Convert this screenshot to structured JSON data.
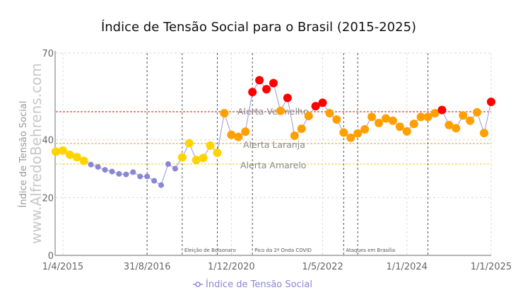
{
  "chart_data": {
    "type": "line",
    "title": "Índice de Tensão Social para o Brasil (2015-2025)",
    "ylabel": "Índice de Tensão Social",
    "watermark": "www.AlfredoBehrens.com",
    "ylim": [
      0,
      70
    ],
    "yticks": [
      0,
      20,
      40,
      70
    ],
    "grid": true,
    "legend": {
      "position": "bottom",
      "entries": [
        "Índice de Tensão Social"
      ]
    },
    "xtick_labels": [
      {
        "index": 1,
        "label": "1/4/2015"
      },
      {
        "index": 13,
        "label": "31/8/2016"
      },
      {
        "index": 25,
        "label": "1/12/2020"
      },
      {
        "index": 38,
        "label": "1/5/2022"
      },
      {
        "index": 50,
        "label": "1/1/2024"
      },
      {
        "index": 62,
        "label": "1/1/2025"
      }
    ],
    "series": [
      {
        "name": "Índice de Tensão Social",
        "color": "#8a86d6",
        "values": [
          35.9,
          36.3,
          34.8,
          34.0,
          32.7,
          31.4,
          30.6,
          29.6,
          29.0,
          28.2,
          28.0,
          28.8,
          27.3,
          27.3,
          25.8,
          24.3,
          31.6,
          30.0,
          33.9,
          38.8,
          33.0,
          33.7,
          38.0,
          35.5,
          49.2,
          41.7,
          41.0,
          42.8,
          56.5,
          60.6,
          57.5,
          59.6,
          50.0,
          54.5,
          41.4,
          43.8,
          48.2,
          51.6,
          52.8,
          49.2,
          47.0,
          42.5,
          40.7,
          42.2,
          43.6,
          47.9,
          45.8,
          47.4,
          46.6,
          44.5,
          42.9,
          45.5,
          47.9,
          47.9,
          49.2,
          50.3,
          45.1,
          44.0,
          48.4,
          46.6,
          49.5,
          42.3,
          53.1
        ],
        "levels": [
          "Y",
          "Y",
          "Y",
          "Y",
          "Y",
          "N",
          "N",
          "N",
          "N",
          "N",
          "N",
          "N",
          "N",
          "N",
          "N",
          "N",
          "N",
          "N",
          "Y",
          "Y",
          "Y",
          "Y",
          "Y",
          "Y",
          "O",
          "O",
          "O",
          "O",
          "R",
          "R",
          "R",
          "R",
          "O",
          "R",
          "O",
          "O",
          "O",
          "R",
          "R",
          "O",
          "O",
          "O",
          "O",
          "O",
          "O",
          "O",
          "O",
          "O",
          "O",
          "O",
          "O",
          "O",
          "O",
          "O",
          "O",
          "R",
          "O",
          "O",
          "O",
          "O",
          "O",
          "O",
          "R"
        ]
      }
    ],
    "level_colors": {
      "N": "#8a86d6",
      "Y": "#FFD400",
      "O": "#FFA000",
      "R": "#FF0000"
    },
    "thresholds": [
      {
        "label": "Alerta Vermelho",
        "value": 49.7,
        "color": "#e05050"
      },
      {
        "label": "Alerta Laranja",
        "value": 38.7,
        "color": "#f0b040"
      },
      {
        "label": "Alerta Amarelo",
        "value": 31.6,
        "color": "#f0d850"
      }
    ],
    "events": [
      {
        "index": 13,
        "label": ""
      },
      {
        "index": 18,
        "label": "Eleição de Bolsonaro"
      },
      {
        "index": 23,
        "label": ""
      },
      {
        "index": 28,
        "label": "Pico da 2ª Onda COVID"
      },
      {
        "index": 41,
        "label": "Ataques em Brasília"
      },
      {
        "index": 43,
        "label": ""
      },
      {
        "index": 53,
        "label": ""
      }
    ]
  }
}
